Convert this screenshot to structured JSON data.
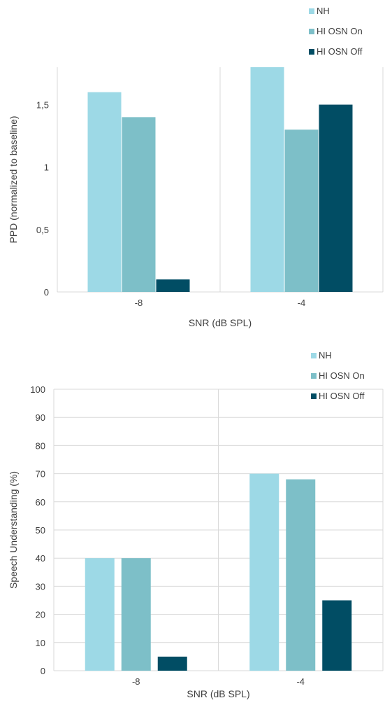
{
  "chart_data": [
    {
      "type": "bar",
      "categories": [
        "-8",
        "-4"
      ],
      "series": [
        {
          "name": "NH",
          "values": [
            1.6,
            1.8
          ]
        },
        {
          "name": "HI OSN On",
          "values": [
            1.4,
            1.3
          ]
        },
        {
          "name": "HI OSN Off",
          "values": [
            0.1,
            1.5
          ]
        }
      ],
      "colors": [
        "#9dd9e6",
        "#7dbfc8",
        "#014d64"
      ],
      "title": "",
      "xlabel": "SNR (dB SPL)",
      "ylabel": "PPD (normalized to baseline)",
      "ylim": [
        0,
        1.8
      ],
      "yticks": [
        0,
        0.5,
        1,
        1.5
      ],
      "ytick_labels": [
        "0",
        "0,5",
        "1",
        "1,5"
      ],
      "grid": "vertical separators between categories",
      "legend_position": "top-right"
    },
    {
      "type": "bar",
      "categories": [
        "-8",
        "-4"
      ],
      "series": [
        {
          "name": "NH",
          "values": [
            40,
            70
          ]
        },
        {
          "name": "HI OSN On",
          "values": [
            40,
            68
          ]
        },
        {
          "name": "HI OSN Off",
          "values": [
            5,
            25
          ]
        }
      ],
      "colors": [
        "#9dd9e6",
        "#7dbfc8",
        "#014d64"
      ],
      "title": "",
      "xlabel": "SNR (dB SPL)",
      "ylabel": "Speech Understanding (%)",
      "ylim": [
        0,
        100
      ],
      "yticks": [
        0,
        10,
        20,
        30,
        40,
        50,
        60,
        70,
        80,
        90,
        100
      ],
      "ytick_labels": [
        "0",
        "10",
        "20",
        "30",
        "40",
        "50",
        "60",
        "70",
        "80",
        "90",
        "100"
      ],
      "grid": "horizontal gridlines and vertical separators between categories",
      "legend_position": "top-right"
    }
  ]
}
